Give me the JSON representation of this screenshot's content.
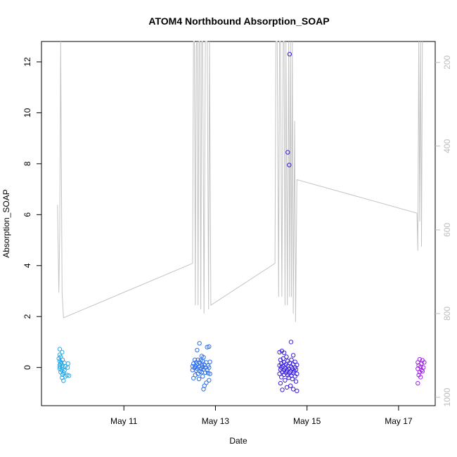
{
  "chart_data": {
    "type": "scatter",
    "title": "ATOM4 Northbound Absorption_SOAP",
    "xlabel": "Date",
    "ylabel": "Absorption_SOAP",
    "x_ticks": [
      "May 11",
      "May 13",
      "May 15",
      "May 17"
    ],
    "x_tick_days": [
      11,
      13,
      15,
      17
    ],
    "xlim_days": [
      9.2,
      17.8
    ],
    "ylim": [
      -1.5,
      12.8
    ],
    "y_ticks": [
      0,
      2,
      4,
      6,
      8,
      10,
      12
    ],
    "y2_ticks": [
      200,
      400,
      600,
      800,
      1000
    ],
    "y2lim": [
      1020,
      150
    ],
    "grid": false,
    "legend": "none",
    "point_series": [
      {
        "color": "#29a9e6",
        "points": [
          [
            9.6,
            0.72
          ],
          [
            9.65,
            0.6
          ],
          [
            9.6,
            0.5
          ],
          [
            9.62,
            0.42
          ],
          [
            9.58,
            0.35
          ],
          [
            9.66,
            0.3
          ],
          [
            9.6,
            0.25
          ],
          [
            9.63,
            0.2
          ],
          [
            9.7,
            0.18
          ],
          [
            9.62,
            0.15
          ],
          [
            9.78,
            0.15
          ],
          [
            9.6,
            0.1
          ],
          [
            9.66,
            0.08
          ],
          [
            9.72,
            0.05
          ],
          [
            9.6,
            0.02
          ],
          [
            9.65,
            0.0
          ],
          [
            9.77,
            0.0
          ],
          [
            9.6,
            -0.05
          ],
          [
            9.64,
            -0.1
          ],
          [
            9.7,
            -0.12
          ],
          [
            9.62,
            -0.18
          ],
          [
            9.68,
            -0.2
          ],
          [
            9.66,
            -0.28
          ],
          [
            9.76,
            -0.3
          ],
          [
            9.8,
            -0.32
          ],
          [
            9.72,
            -0.35
          ],
          [
            9.65,
            -0.4
          ],
          [
            9.68,
            -0.52
          ]
        ]
      },
      {
        "color": "#2f6fe8",
        "points": [
          [
            12.65,
            0.95
          ],
          [
            12.82,
            0.8
          ],
          [
            12.86,
            0.82
          ],
          [
            12.6,
            0.68
          ],
          [
            12.7,
            0.45
          ],
          [
            12.74,
            0.4
          ],
          [
            12.55,
            0.3
          ],
          [
            12.62,
            0.3
          ],
          [
            12.68,
            0.28
          ],
          [
            12.72,
            0.25
          ],
          [
            12.8,
            0.2
          ],
          [
            12.88,
            0.22
          ],
          [
            12.58,
            0.2
          ],
          [
            12.66,
            0.18
          ],
          [
            12.52,
            0.15
          ],
          [
            12.6,
            0.12
          ],
          [
            12.7,
            0.1
          ],
          [
            12.76,
            0.1
          ],
          [
            12.84,
            0.08
          ],
          [
            12.5,
            0.05
          ],
          [
            12.56,
            0.05
          ],
          [
            12.64,
            0.03
          ],
          [
            12.72,
            0.02
          ],
          [
            12.78,
            0.0
          ],
          [
            12.86,
            0.0
          ],
          [
            12.54,
            -0.02
          ],
          [
            12.6,
            -0.05
          ],
          [
            12.68,
            -0.05
          ],
          [
            12.74,
            -0.08
          ],
          [
            12.82,
            -0.1
          ],
          [
            12.5,
            -0.1
          ],
          [
            12.58,
            -0.12
          ],
          [
            12.66,
            -0.15
          ],
          [
            12.7,
            -0.18
          ],
          [
            12.78,
            -0.2
          ],
          [
            12.84,
            -0.22
          ],
          [
            12.62,
            -0.25
          ],
          [
            12.88,
            -0.25
          ],
          [
            12.56,
            -0.3
          ],
          [
            12.72,
            -0.35
          ],
          [
            12.52,
            -0.42
          ],
          [
            12.64,
            -0.45
          ],
          [
            12.86,
            -0.5
          ],
          [
            12.8,
            -0.6
          ],
          [
            12.76,
            -0.72
          ],
          [
            12.74,
            -0.85
          ]
        ]
      },
      {
        "color": "#3a1fe0",
        "points": [
          [
            14.62,
            12.3
          ],
          [
            14.58,
            8.45
          ],
          [
            14.61,
            7.95
          ],
          [
            14.65,
            1.0
          ],
          [
            14.45,
            0.65
          ],
          [
            14.5,
            0.58
          ],
          [
            14.4,
            0.6
          ],
          [
            14.7,
            0.48
          ],
          [
            14.55,
            0.42
          ],
          [
            14.48,
            0.35
          ],
          [
            14.66,
            0.3
          ],
          [
            14.42,
            0.3
          ],
          [
            14.58,
            0.25
          ],
          [
            14.74,
            0.22
          ],
          [
            14.5,
            0.2
          ],
          [
            14.62,
            0.18
          ],
          [
            14.44,
            0.15
          ],
          [
            14.54,
            0.12
          ],
          [
            14.7,
            0.12
          ],
          [
            14.78,
            0.1
          ],
          [
            14.4,
            0.08
          ],
          [
            14.48,
            0.05
          ],
          [
            14.58,
            0.05
          ],
          [
            14.66,
            0.02
          ],
          [
            14.74,
            0.0
          ],
          [
            14.44,
            0.0
          ],
          [
            14.52,
            -0.02
          ],
          [
            14.6,
            -0.05
          ],
          [
            14.68,
            -0.05
          ],
          [
            14.76,
            -0.08
          ],
          [
            14.42,
            -0.08
          ],
          [
            14.5,
            -0.1
          ],
          [
            14.56,
            -0.12
          ],
          [
            14.64,
            -0.15
          ],
          [
            14.72,
            -0.15
          ],
          [
            14.46,
            -0.18
          ],
          [
            14.54,
            -0.2
          ],
          [
            14.62,
            -0.22
          ],
          [
            14.7,
            -0.22
          ],
          [
            14.78,
            -0.25
          ],
          [
            14.4,
            -0.25
          ],
          [
            14.5,
            -0.28
          ],
          [
            14.58,
            -0.3
          ],
          [
            14.66,
            -0.32
          ],
          [
            14.74,
            -0.35
          ],
          [
            14.44,
            -0.38
          ],
          [
            14.6,
            -0.4
          ],
          [
            14.68,
            -0.45
          ],
          [
            14.52,
            -0.5
          ],
          [
            14.76,
            -0.55
          ],
          [
            14.42,
            -0.62
          ],
          [
            14.64,
            -0.72
          ],
          [
            14.56,
            -0.78
          ],
          [
            14.46,
            -0.88
          ],
          [
            14.7,
            -0.85
          ],
          [
            14.78,
            -0.92
          ]
        ]
      },
      {
        "color": "#9d22e6",
        "points": [
          [
            17.46,
            0.32
          ],
          [
            17.52,
            0.28
          ],
          [
            17.42,
            0.2
          ],
          [
            17.5,
            0.15
          ],
          [
            17.56,
            0.2
          ],
          [
            17.44,
            0.08
          ],
          [
            17.48,
            0.02
          ],
          [
            17.54,
            0.0
          ],
          [
            17.42,
            -0.05
          ],
          [
            17.5,
            -0.1
          ],
          [
            17.46,
            -0.18
          ],
          [
            17.52,
            -0.15
          ],
          [
            17.44,
            -0.3
          ],
          [
            17.48,
            -0.38
          ],
          [
            17.42,
            -0.62
          ]
        ]
      }
    ],
    "line_series": {
      "color": "#c4c4c4",
      "axis": "right",
      "points": [
        [
          9.55,
          540
        ],
        [
          9.58,
          750
        ],
        [
          9.6,
          600
        ],
        [
          9.62,
          140
        ],
        [
          9.65,
          750
        ],
        [
          9.68,
          810
        ],
        [
          12.5,
          680
        ],
        [
          12.52,
          150
        ],
        [
          12.54,
          140
        ],
        [
          12.56,
          780
        ],
        [
          12.58,
          160
        ],
        [
          12.6,
          140
        ],
        [
          12.62,
          780
        ],
        [
          12.64,
          150
        ],
        [
          12.66,
          140
        ],
        [
          12.68,
          790
        ],
        [
          12.7,
          150
        ],
        [
          12.72,
          140
        ],
        [
          12.75,
          800
        ],
        [
          12.78,
          140
        ],
        [
          12.82,
          140
        ],
        [
          12.85,
          790
        ],
        [
          12.87,
          130
        ],
        [
          12.9,
          780
        ],
        [
          14.3,
          680
        ],
        [
          14.32,
          150
        ],
        [
          14.35,
          140
        ],
        [
          14.38,
          760
        ],
        [
          14.4,
          150
        ],
        [
          14.42,
          140
        ],
        [
          14.45,
          760
        ],
        [
          14.48,
          150
        ],
        [
          14.5,
          140
        ],
        [
          14.52,
          780
        ],
        [
          14.54,
          150
        ],
        [
          14.57,
          780
        ],
        [
          14.6,
          140
        ],
        [
          14.62,
          760
        ],
        [
          14.64,
          150
        ],
        [
          14.66,
          760
        ],
        [
          14.68,
          140
        ],
        [
          14.7,
          800
        ],
        [
          14.73,
          340
        ],
        [
          14.75,
          820
        ],
        [
          14.78,
          480
        ],
        [
          17.4,
          560
        ],
        [
          17.42,
          650
        ],
        [
          17.44,
          140
        ],
        [
          17.46,
          580
        ],
        [
          17.48,
          140
        ],
        [
          17.5,
          640
        ],
        [
          17.52,
          140
        ]
      ]
    }
  }
}
